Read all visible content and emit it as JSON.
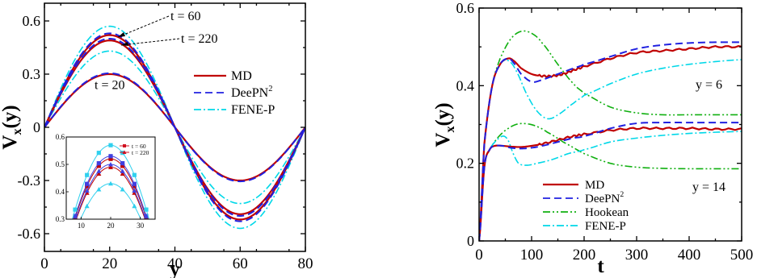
{
  "chart_data": [
    {
      "type": "line",
      "xlabel": "y",
      "ylabel": "V",
      "ylabel_sub": "x",
      "ylabel_tail": "(y)",
      "xlim": [
        0,
        80
      ],
      "ylim": [
        -0.7,
        0.7
      ],
      "xticks": [
        "0",
        "20",
        "40",
        "60",
        "80"
      ],
      "yticks": [
        "-0.6",
        "-0.3",
        "0",
        "0.3",
        "0.6"
      ],
      "legend": {
        "placement": "right",
        "entries": [
          {
            "label": "MD",
            "sup": "",
            "color": "#c00000",
            "style": "solid"
          },
          {
            "label": "DeePN",
            "sup": "2",
            "color": "#2020e0",
            "style": "dashed"
          },
          {
            "label": "FENE-P",
            "sup": "",
            "color": "#00d8e8",
            "style": "dashdot"
          }
        ]
      },
      "annotations": [
        "t = 60",
        "t = 220",
        "t = 20"
      ],
      "series": [
        {
          "name": "MD",
          "time": "20",
          "amplitude": 0.3
        },
        {
          "name": "MD",
          "time": "60",
          "amplitude": 0.52
        },
        {
          "name": "MD",
          "time": "220",
          "amplitude": 0.49
        },
        {
          "name": "DeePN2",
          "time": "20",
          "amplitude": 0.305
        },
        {
          "name": "DeePN2",
          "time": "60",
          "amplitude": 0.53
        },
        {
          "name": "DeePN2",
          "time": "220",
          "amplitude": 0.5
        },
        {
          "name": "FENE-P",
          "time": "60",
          "amplitude": 0.57
        },
        {
          "name": "FENE-P",
          "time": "220",
          "amplitude": 0.43
        }
      ],
      "inset": {
        "xlim": [
          5,
          35
        ],
        "ylim": [
          0.3,
          0.6
        ],
        "xticks": [
          "10",
          "20",
          "30"
        ],
        "yticks": [
          "0.3",
          "0.4",
          "0.5",
          "0.6"
        ],
        "legend": [
          {
            "label": "t = 60",
            "color": "#d01020",
            "marker": "square"
          },
          {
            "label": "t = 220",
            "color": "#d01020",
            "marker": "triangle"
          }
        ],
        "marker_x": [
          8,
          12,
          16,
          20,
          24,
          28,
          32
        ],
        "series": [
          {
            "name": "MD",
            "amplitude": 0.52,
            "color": "#c00000",
            "marker": "square"
          },
          {
            "name": "MD",
            "amplitude": 0.49,
            "color": "#c00000",
            "marker": "triangle"
          },
          {
            "name": "DeePN2",
            "amplitude": 0.53,
            "color": "#4040e0",
            "marker": "square"
          },
          {
            "name": "DeePN2",
            "amplitude": 0.5,
            "color": "#4040e0",
            "marker": "triangle"
          },
          {
            "name": "FENE-P",
            "amplitude": 0.57,
            "color": "#30d0ee",
            "marker": "square"
          },
          {
            "name": "FENE-P",
            "amplitude": 0.43,
            "color": "#30d0ee",
            "marker": "triangle"
          }
        ]
      }
    },
    {
      "type": "line",
      "xlabel": "t",
      "ylabel": "V",
      "ylabel_sub": "x",
      "ylabel_tail": "(y)",
      "xlim": [
        0,
        500
      ],
      "ylim": [
        0,
        0.6
      ],
      "xticks": [
        "0",
        "100",
        "200",
        "300",
        "400",
        "500"
      ],
      "yticks": [
        "0",
        "0.2",
        "0.4",
        "0.6"
      ],
      "legend": {
        "placement": "bottom-center",
        "entries": [
          {
            "label": "MD",
            "sup": "",
            "color": "#c00000",
            "style": "solid"
          },
          {
            "label": "DeePN",
            "sup": "2",
            "color": "#2020e0",
            "style": "dashed"
          },
          {
            "label": "Hookean",
            "sup": "",
            "color": "#10b010",
            "style": "dashdotdot"
          },
          {
            "label": "FENE-P",
            "sup": "",
            "color": "#00d8e8",
            "style": "dashdot"
          }
        ]
      },
      "annotations": [
        "y = 6",
        "y = 14"
      ],
      "series": [
        {
          "name": "MD",
          "group": "y = 6",
          "x": [
            0,
            10,
            25,
            40,
            55,
            65,
            80,
            100,
            120,
            140,
            160,
            180,
            200,
            250,
            300,
            350,
            400,
            450,
            500
          ],
          "y": [
            0,
            0.25,
            0.4,
            0.455,
            0.47,
            0.465,
            0.445,
            0.43,
            0.425,
            0.425,
            0.43,
            0.44,
            0.45,
            0.47,
            0.485,
            0.49,
            0.495,
            0.5,
            0.5
          ]
        },
        {
          "name": "DeePN2",
          "group": "y = 6",
          "x": [
            0,
            10,
            25,
            40,
            55,
            65,
            80,
            100,
            120,
            140,
            160,
            180,
            200,
            250,
            300,
            350,
            400,
            450,
            500
          ],
          "y": [
            0,
            0.25,
            0.4,
            0.455,
            0.47,
            0.46,
            0.43,
            0.41,
            0.415,
            0.425,
            0.435,
            0.445,
            0.455,
            0.475,
            0.495,
            0.505,
            0.51,
            0.512,
            0.512
          ]
        },
        {
          "name": "Hookean",
          "group": "y = 6",
          "x": [
            0,
            10,
            25,
            40,
            60,
            80,
            100,
            120,
            150,
            180,
            200,
            250,
            300,
            350,
            400,
            450,
            500
          ],
          "y": [
            0,
            0.25,
            0.4,
            0.47,
            0.52,
            0.54,
            0.535,
            0.51,
            0.455,
            0.405,
            0.38,
            0.345,
            0.33,
            0.325,
            0.325,
            0.325,
            0.325
          ]
        },
        {
          "name": "FENE-P",
          "group": "y = 6",
          "x": [
            0,
            10,
            25,
            40,
            55,
            70,
            90,
            110,
            130,
            150,
            180,
            200,
            250,
            300,
            350,
            400,
            450,
            500
          ],
          "y": [
            0,
            0.25,
            0.4,
            0.455,
            0.465,
            0.44,
            0.38,
            0.335,
            0.315,
            0.325,
            0.355,
            0.375,
            0.405,
            0.43,
            0.445,
            0.455,
            0.462,
            0.467
          ]
        },
        {
          "name": "MD",
          "group": "y = 14",
          "x": [
            0,
            10,
            20,
            30,
            45,
            60,
            80,
            100,
            120,
            150,
            180,
            200,
            250,
            300,
            350,
            400,
            450,
            500
          ],
          "y": [
            0,
            0.19,
            0.235,
            0.245,
            0.245,
            0.243,
            0.242,
            0.245,
            0.25,
            0.26,
            0.27,
            0.275,
            0.285,
            0.29,
            0.29,
            0.29,
            0.288,
            0.288
          ]
        },
        {
          "name": "DeePN2",
          "group": "y = 14",
          "x": [
            0,
            10,
            20,
            30,
            45,
            60,
            80,
            100,
            120,
            150,
            180,
            200,
            250,
            300,
            350,
            400,
            450,
            500
          ],
          "y": [
            0,
            0.19,
            0.235,
            0.245,
            0.245,
            0.24,
            0.238,
            0.24,
            0.245,
            0.255,
            0.265,
            0.27,
            0.29,
            0.303,
            0.305,
            0.305,
            0.305,
            0.305
          ]
        },
        {
          "name": "Hookean",
          "group": "y = 14",
          "x": [
            0,
            10,
            20,
            35,
            50,
            70,
            90,
            110,
            130,
            160,
            200,
            250,
            300,
            350,
            400,
            450,
            500
          ],
          "y": [
            0,
            0.19,
            0.235,
            0.265,
            0.285,
            0.3,
            0.302,
            0.295,
            0.28,
            0.255,
            0.225,
            0.2,
            0.19,
            0.187,
            0.186,
            0.186,
            0.186
          ]
        },
        {
          "name": "FENE-P",
          "group": "y = 14",
          "x": [
            0,
            10,
            20,
            30,
            45,
            55,
            65,
            75,
            90,
            110,
            140,
            170,
            200,
            250,
            300,
            350,
            400,
            450,
            500
          ],
          "y": [
            0,
            0.19,
            0.235,
            0.255,
            0.27,
            0.26,
            0.225,
            0.2,
            0.195,
            0.2,
            0.21,
            0.225,
            0.235,
            0.255,
            0.265,
            0.272,
            0.277,
            0.28,
            0.282
          ]
        }
      ]
    }
  ]
}
